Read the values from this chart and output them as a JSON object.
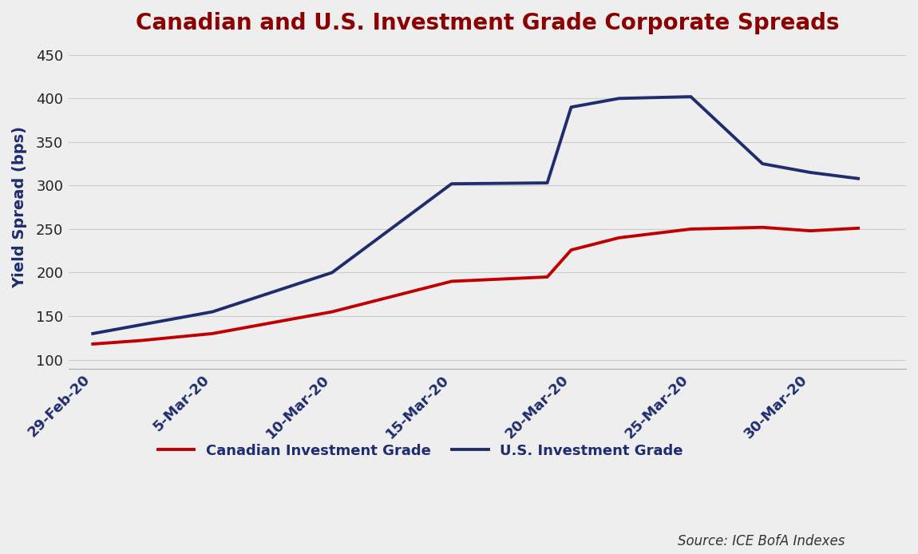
{
  "title": "Canadian and U.S. Investment Grade Corporate Spreads",
  "title_color": "#8B0000",
  "ylabel": "Yield Spread (bps)",
  "source_text": "Source: ICE BofA Indexes",
  "background_color": "#EEEEEE",
  "plot_background_color": "#EEEEEE",
  "ylim": [
    90,
    460
  ],
  "yticks": [
    100,
    150,
    200,
    250,
    300,
    350,
    400,
    450
  ],
  "x_tick_labels": [
    "29-Feb-20",
    "5-Mar-20",
    "10-Mar-20",
    "15-Mar-20",
    "20-Mar-20",
    "25-Mar-20",
    "30-Mar-20"
  ],
  "x_tick_days": [
    0,
    5,
    10,
    15,
    20,
    25,
    30
  ],
  "canadian": {
    "label": "Canadian Investment Grade",
    "color": "#C00000",
    "linewidth": 2.8,
    "days": [
      0,
      2,
      5,
      10,
      15,
      19,
      20,
      22,
      25,
      28,
      30,
      32
    ],
    "values": [
      118,
      122,
      130,
      155,
      190,
      195,
      226,
      240,
      250,
      252,
      248,
      251
    ]
  },
  "us": {
    "label": "U.S. Investment Grade",
    "color": "#1F2D6E",
    "linewidth": 2.8,
    "days": [
      0,
      2,
      5,
      10,
      15,
      19,
      20,
      22,
      25,
      28,
      30,
      32
    ],
    "values": [
      130,
      140,
      155,
      200,
      302,
      303,
      390,
      400,
      402,
      325,
      315,
      308
    ]
  },
  "grid_color": "#CCCCCC",
  "legend_color": "#1F2D6E"
}
